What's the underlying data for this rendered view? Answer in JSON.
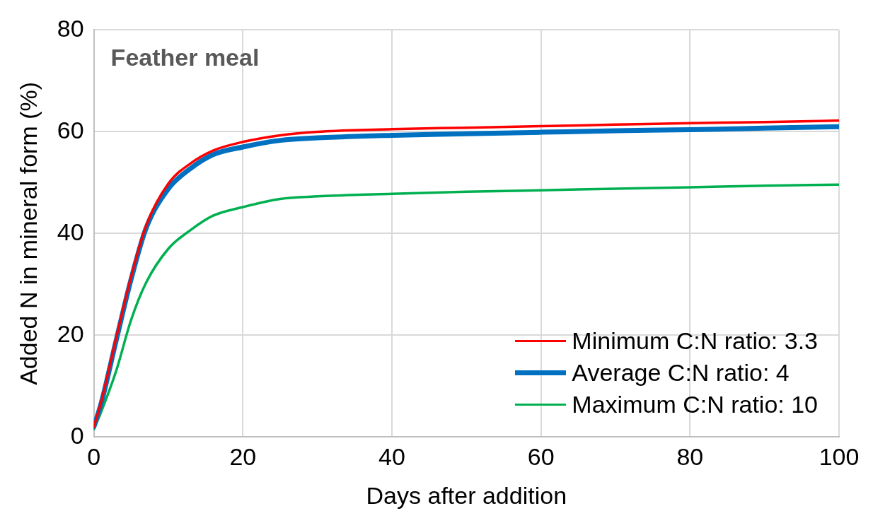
{
  "chart_data": {
    "type": "line",
    "title": "Feather meal",
    "xlabel": "Days after addition",
    "ylabel": "Added N in mineral form (%)",
    "x": [
      0,
      1,
      3,
      5,
      7,
      10,
      13,
      16,
      20,
      25,
      30,
      40,
      50,
      60,
      70,
      80,
      90,
      100
    ],
    "series": [
      {
        "name": "Minimum C:N ratio: 3.3",
        "color": "#ff0000",
        "values": [
          2,
          7,
          19.5,
          31.5,
          41.5,
          49.8,
          53.8,
          56.3,
          58,
          59.3,
          60,
          60.5,
          60.8,
          61.1,
          61.4,
          61.7,
          61.9,
          62.2
        ]
      },
      {
        "name": "Average C:N ratio: 4",
        "color": "#0070c0",
        "values": [
          2,
          6.7,
          19,
          31,
          41,
          48.8,
          52.8,
          55.5,
          57,
          58.3,
          58.8,
          59.3,
          59.6,
          59.9,
          60.2,
          60.4,
          60.7,
          61
        ]
      },
      {
        "name": "Maximum C:N ratio: 10",
        "color": "#00b050",
        "values": [
          1.5,
          5,
          13,
          23,
          30.3,
          37,
          40.7,
          43.5,
          45.2,
          46.8,
          47.3,
          47.8,
          48.2,
          48.5,
          48.8,
          49.1,
          49.4,
          49.6
        ]
      }
    ],
    "xlim": [
      0,
      100
    ],
    "xticks": [
      0,
      20,
      40,
      60,
      80,
      100
    ],
    "ylim": [
      0,
      80
    ],
    "yticks": [
      0,
      20,
      40,
      60,
      80
    ],
    "grid": true,
    "legend": "bottom right",
    "marker": "none",
    "line_style": "solid"
  }
}
